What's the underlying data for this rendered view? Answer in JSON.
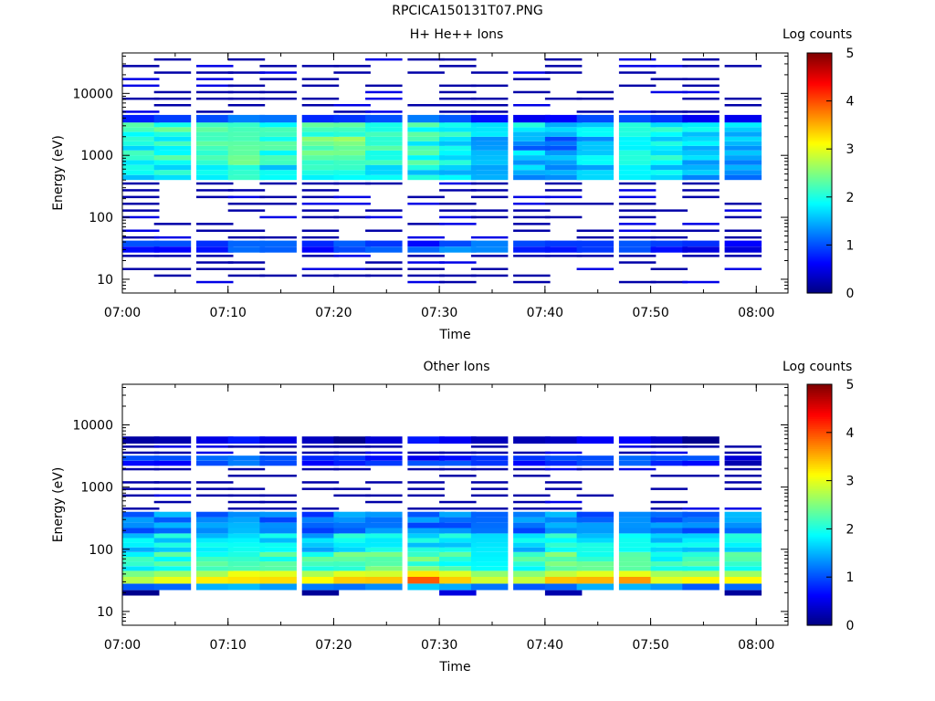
{
  "figure": {
    "title": "RPCICA150131T07.PNG"
  },
  "colorbar": {
    "label": "Log counts",
    "range": [
      0,
      5
    ],
    "ticks": [
      "0",
      "1",
      "2",
      "3",
      "4",
      "5"
    ],
    "colormap": "jet"
  },
  "chart_data": [
    {
      "type": "heatmap",
      "title": "H+ He++ Ions",
      "xlabel": "Time",
      "ylabel": "Energy (eV)",
      "y_scale": "log",
      "ylim": [
        6,
        45000
      ],
      "xlim": [
        "07:00",
        "08:03"
      ],
      "x_ticks": [
        "07:00",
        "07:10",
        "07:20",
        "07:30",
        "07:40",
        "07:50",
        "08:00"
      ],
      "y_ticks": [
        "10",
        "100",
        "1000",
        "10000"
      ],
      "time_bins_start": [
        "07:00",
        "07:03",
        "07:07",
        "07:10",
        "07:13",
        "07:17",
        "07:20",
        "07:23",
        "07:27",
        "07:30",
        "07:33",
        "07:37",
        "07:40",
        "07:43",
        "07:47",
        "07:50",
        "07:53",
        "07:57"
      ],
      "bands": [
        {
          "e_lo": 27,
          "e_hi": 42,
          "values": [
            0.9,
            0.8,
            0.6,
            0.9,
            1.0,
            0.8,
            1.2,
            1.1,
            0.9,
            1.2,
            1.4,
            1.0,
            0.8,
            0.7,
            0.8,
            0.7,
            0.7,
            0.6
          ]
        },
        {
          "e_lo": 400,
          "e_hi": 700,
          "values": [
            1.8,
            1.9,
            1.7,
            1.9,
            1.8,
            2.0,
            2.1,
            1.9,
            1.8,
            1.7,
            1.6,
            1.5,
            1.4,
            1.5,
            1.6,
            1.7,
            1.5,
            1.3
          ]
        },
        {
          "e_lo": 700,
          "e_hi": 1200,
          "values": [
            2.0,
            2.1,
            2.0,
            2.2,
            2.1,
            2.3,
            2.4,
            2.2,
            2.1,
            1.9,
            1.7,
            1.6,
            1.5,
            1.7,
            1.8,
            1.9,
            1.6,
            1.4
          ]
        },
        {
          "e_lo": 1200,
          "e_hi": 2000,
          "values": [
            1.9,
            2.0,
            2.1,
            2.1,
            2.2,
            2.4,
            2.6,
            2.3,
            2.0,
            1.8,
            1.5,
            1.3,
            1.1,
            1.4,
            1.6,
            1.8,
            1.7,
            1.5
          ]
        },
        {
          "e_lo": 2000,
          "e_hi": 3400,
          "values": [
            2.1,
            2.2,
            2.1,
            2.0,
            2.1,
            2.2,
            2.3,
            2.2,
            2.1,
            2.0,
            1.9,
            1.8,
            1.6,
            1.7,
            1.8,
            1.9,
            1.8,
            1.6
          ]
        },
        {
          "e_lo": 3400,
          "e_hi": 4500,
          "values": [
            1.0,
            1.1,
            0.9,
            1.0,
            1.1,
            1.0,
            1.1,
            1.0,
            1.0,
            0.9,
            0.8,
            0.8,
            0.7,
            0.8,
            0.8,
            0.9,
            0.8,
            0.7
          ]
        }
      ],
      "sparse_range": [
        [
          8,
          27
        ],
        [
          42,
          400
        ],
        [
          4500,
          40000
        ]
      ],
      "sparse_level": 0.2
    },
    {
      "type": "heatmap",
      "title": "Other Ions",
      "xlabel": "Time",
      "ylabel": "Energy (eV)",
      "y_scale": "log",
      "ylim": [
        6,
        45000
      ],
      "xlim": [
        "07:00",
        "08:03"
      ],
      "x_ticks": [
        "07:00",
        "07:10",
        "07:20",
        "07:30",
        "07:40",
        "07:50",
        "08:00"
      ],
      "y_ticks": [
        "10",
        "100",
        "1000",
        "10000"
      ],
      "time_bins_start": [
        "07:00",
        "07:03",
        "07:07",
        "07:10",
        "07:13",
        "07:17",
        "07:20",
        "07:23",
        "07:27",
        "07:30",
        "07:33",
        "07:37",
        "07:40",
        "07:43",
        "07:47",
        "07:50",
        "07:53",
        "07:57"
      ],
      "bands": [
        {
          "e_lo": 18,
          "e_hi": 22,
          "values": [
            0.3,
            0.0,
            0.0,
            0.0,
            0.0,
            0.3,
            0.0,
            0.0,
            0.0,
            0.3,
            0.0,
            0.0,
            0.3,
            0.0,
            0.0,
            0.0,
            0.0,
            0.3
          ]
        },
        {
          "e_lo": 22,
          "e_hi": 28,
          "values": [
            1.3,
            1.3,
            1.4,
            1.3,
            1.3,
            1.4,
            1.4,
            1.3,
            1.4,
            1.3,
            1.3,
            1.3,
            1.2,
            1.3,
            1.3,
            1.4,
            1.3,
            1.3
          ]
        },
        {
          "e_lo": 28,
          "e_hi": 36,
          "values": [
            3.0,
            3.2,
            3.1,
            3.0,
            3.2,
            3.3,
            3.6,
            3.4,
            3.7,
            3.2,
            3.0,
            3.1,
            3.5,
            3.3,
            3.4,
            3.0,
            3.4,
            3.3
          ]
        },
        {
          "e_lo": 36,
          "e_hi": 45,
          "values": [
            2.7,
            2.8,
            2.6,
            2.8,
            2.9,
            2.9,
            3.2,
            2.9,
            3.0,
            2.8,
            2.7,
            2.8,
            2.9,
            2.8,
            2.8,
            2.7,
            2.9,
            2.8
          ]
        },
        {
          "e_lo": 45,
          "e_hi": 90,
          "values": [
            2.0,
            2.1,
            2.1,
            2.0,
            2.2,
            2.2,
            2.3,
            2.5,
            2.3,
            2.1,
            2.0,
            2.1,
            2.4,
            2.2,
            2.1,
            2.0,
            2.2,
            2.1
          ]
        },
        {
          "e_lo": 90,
          "e_hi": 180,
          "values": [
            1.7,
            1.8,
            1.7,
            1.7,
            1.8,
            1.6,
            1.9,
            2.0,
            1.8,
            1.8,
            1.9,
            1.7,
            2.0,
            1.8,
            1.7,
            1.7,
            1.8,
            1.8
          ]
        },
        {
          "e_lo": 180,
          "e_hi": 400,
          "values": [
            1.2,
            1.3,
            1.2,
            1.3,
            1.2,
            1.1,
            1.3,
            1.4,
            1.2,
            1.2,
            1.3,
            1.2,
            1.4,
            1.2,
            1.1,
            1.2,
            1.2,
            1.3
          ]
        },
        {
          "e_lo": 2200,
          "e_hi": 3200,
          "values": [
            0.9,
            0.8,
            0.9,
            1.0,
            0.9,
            0.8,
            1.0,
            0.9,
            0.8,
            0.9,
            1.0,
            0.9,
            0.9,
            0.8,
            0.9,
            0.8,
            0.9,
            0.4
          ]
        },
        {
          "e_lo": 5000,
          "e_hi": 6500,
          "values": [
            0.4,
            0.4,
            0.4,
            0.5,
            0.4,
            0.5,
            0.3,
            0.4,
            0.5,
            0.4,
            0.4,
            0.5,
            0.4,
            0.4,
            0.4,
            0.4,
            0.3,
            0.0
          ]
        }
      ],
      "sparse_range": [
        [
          400,
          2200
        ],
        [
          3200,
          5000
        ]
      ],
      "sparse_level": 0.2
    }
  ]
}
